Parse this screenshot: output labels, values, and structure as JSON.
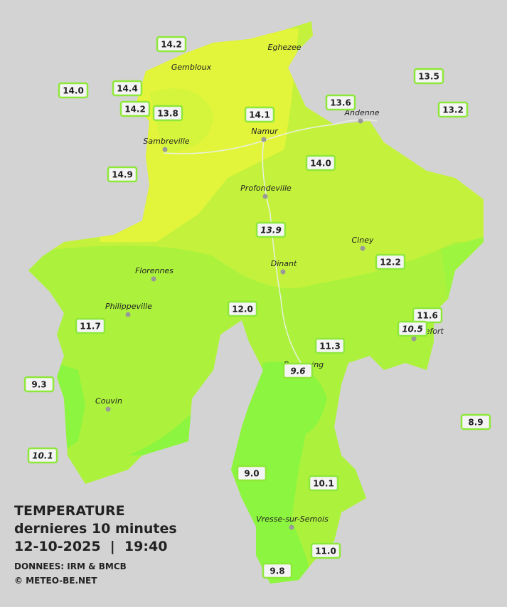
{
  "title": {
    "line1": "TEMPERATURE",
    "line2": "dernieres 10 minutes",
    "line3": "12-10-2025  |  19:40",
    "source": "DONNEES: IRM & BMCB",
    "copyright": "© METEO-BE.NET"
  },
  "cities": [
    "Eghezee",
    "Gembloux",
    "Andenne",
    "Namur",
    "Sambreville",
    "Profondeville",
    "Ciney",
    "Dinant",
    "Florennes",
    "Philippeville",
    "Rochefort",
    "Beauraing",
    "Couvin",
    "Vresse-sur-Semois"
  ],
  "stations": [
    "14.2",
    "14.0",
    "14.4",
    "14.2",
    "13.8",
    "14.1",
    "13.6",
    "13.5",
    "13.2",
    "14.9",
    "14.0",
    "13.9",
    "12.2",
    "12.0",
    "11.7",
    "11.6",
    "10.5",
    "11.3",
    "9.6",
    "9.3",
    "8.9",
    "10.1",
    "9.0",
    "10.1",
    "11.0",
    "9.8"
  ]
}
